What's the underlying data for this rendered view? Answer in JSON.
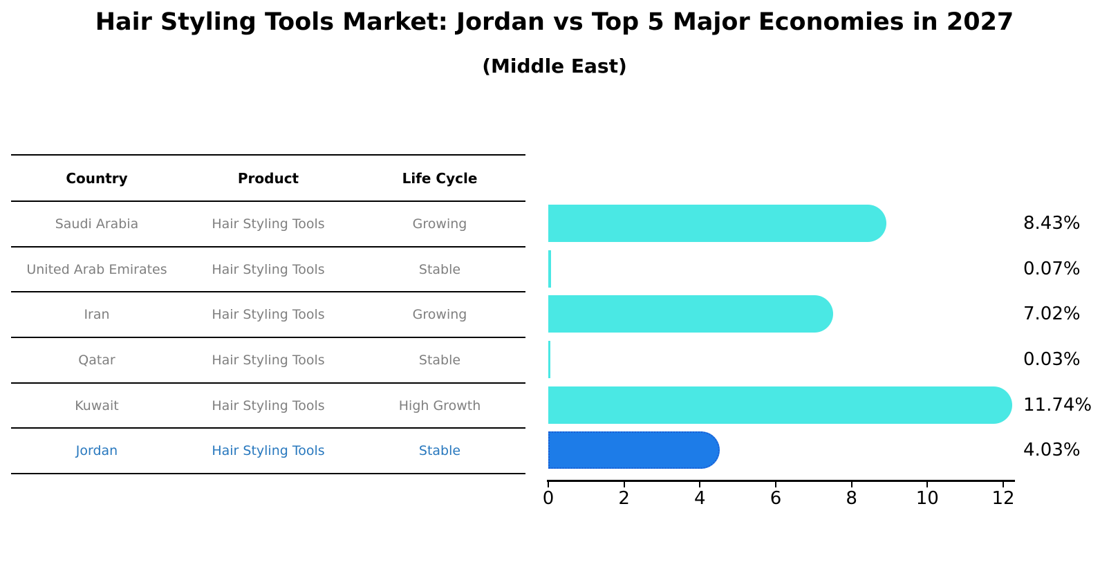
{
  "title": "Hair Styling Tools Market: Jordan vs Top 5 Major Economies in 2027",
  "subtitle": "(Middle East)",
  "table": {
    "headers": [
      "Country",
      "Product",
      "Life Cycle"
    ],
    "rows": [
      {
        "country": "Saudi Arabia",
        "product": "Hair Styling Tools",
        "life_cycle": "Growing"
      },
      {
        "country": "United Arab Emirates",
        "product": "Hair Styling Tools",
        "life_cycle": "Stable"
      },
      {
        "country": "Iran",
        "product": "Hair Styling Tools",
        "life_cycle": "Growing"
      },
      {
        "country": "Qatar",
        "product": "Hair Styling Tools",
        "life_cycle": "Stable"
      },
      {
        "country": "Kuwait",
        "product": "Hair Styling Tools",
        "life_cycle": "High Growth"
      },
      {
        "country": "Jordan",
        "product": "Hair Styling Tools",
        "life_cycle": "Stable"
      }
    ],
    "highlighted_row": "Jordan"
  },
  "chart_data": {
    "type": "bar",
    "orientation": "horizontal",
    "title": "Hair Styling Tools Market: Jordan vs Top 5 Major Economies in 2027 (Middle East)",
    "categories": [
      "Saudi Arabia",
      "United Arab Emirates",
      "Iran",
      "Qatar",
      "Kuwait",
      "Jordan"
    ],
    "values": [
      8.43,
      0.07,
      7.02,
      0.03,
      11.74,
      4.03
    ],
    "value_labels": [
      "8.43%",
      "0.07%",
      "7.02%",
      "0.03%",
      "11.74%",
      "4.03%"
    ],
    "unit": "%",
    "x_ticks": [
      0,
      2,
      4,
      6,
      8,
      10,
      12
    ],
    "xlim": [
      0,
      12
    ],
    "grid": "off",
    "legend": "none",
    "highlight_index": 5,
    "bar_color": "#4AE8E4",
    "highlight_bar_color": "#1D7CE8",
    "highlight_border_color": "#1A5ED4"
  },
  "colors": {
    "background": "#FFFFFF",
    "table_text": "#7F7F7F",
    "header_text": "#000000",
    "highlight_text": "#2878BE",
    "table_line": "#000000",
    "axis": "#000000",
    "value_text": "#000000"
  }
}
